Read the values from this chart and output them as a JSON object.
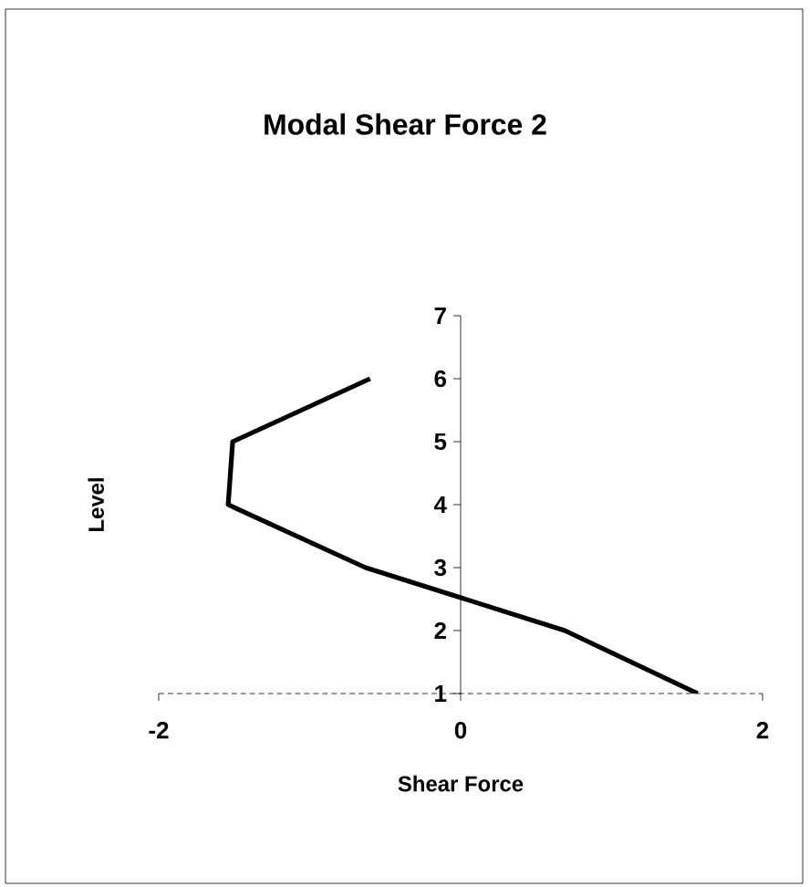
{
  "chart_data": {
    "type": "line",
    "title": "Modal Shear Force 2",
    "xlabel": "Shear Force",
    "ylabel": "Level",
    "series": [
      {
        "color": "#000000",
        "x": [
          1.57,
          0.69,
          -0.63,
          -1.54,
          -1.51,
          -0.6
        ],
        "values": [
          1,
          2,
          3,
          4,
          5,
          6
        ]
      }
    ],
    "xlim": [
      -2,
      2
    ],
    "ylim": [
      1,
      7
    ],
    "xticks": [
      -2,
      0,
      2
    ],
    "yticks": [
      1,
      2,
      3,
      4,
      5,
      6,
      7
    ],
    "marker": "none",
    "line_style": "solid"
  }
}
